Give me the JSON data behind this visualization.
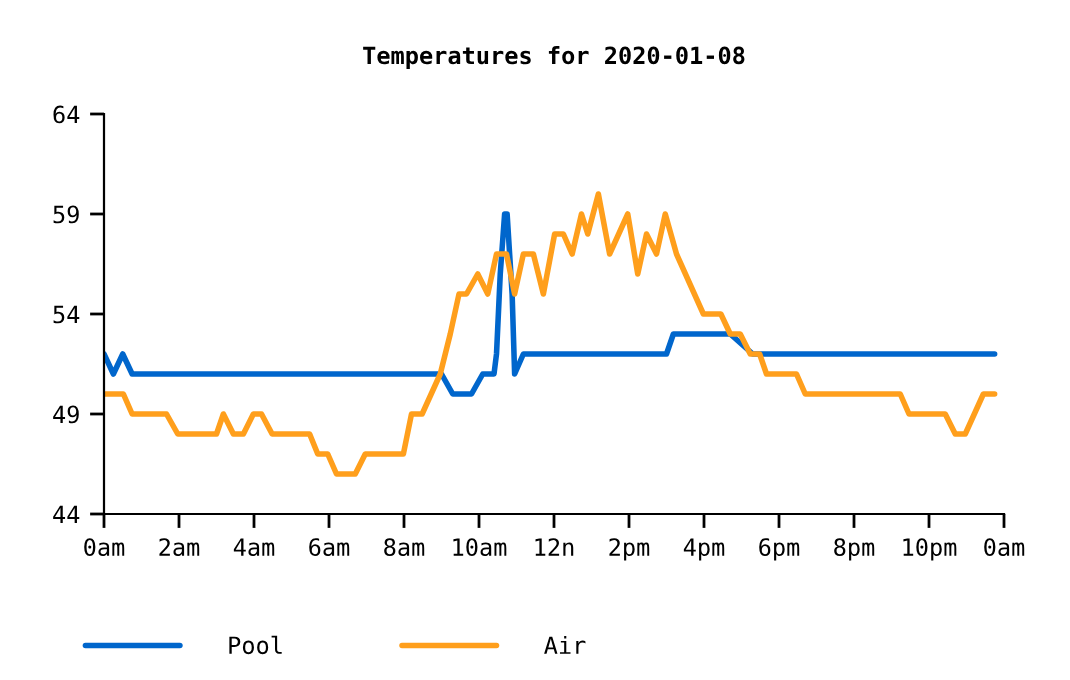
{
  "chart_data": {
    "type": "line",
    "title": "Temperatures for 2020-01-08",
    "xlim": [
      "2020-01-08T00:00",
      "2020-01-09T00:00"
    ],
    "xticks": [
      {
        "value": "2020-01-08T00:00",
        "label": "0am"
      },
      {
        "value": "2020-01-08T02:00",
        "label": "2am"
      },
      {
        "value": "2020-01-08T04:00",
        "label": "4am"
      },
      {
        "value": "2020-01-08T06:00",
        "label": "6am"
      },
      {
        "value": "2020-01-08T08:00",
        "label": "8am"
      },
      {
        "value": "2020-01-08T10:00",
        "label": "10am"
      },
      {
        "value": "2020-01-08T12:00",
        "label": "12n"
      },
      {
        "value": "2020-01-08T14:00",
        "label": "2pm"
      },
      {
        "value": "2020-01-08T16:00",
        "label": "4pm"
      },
      {
        "value": "2020-01-08T18:00",
        "label": "6pm"
      },
      {
        "value": "2020-01-08T20:00",
        "label": "8pm"
      },
      {
        "value": "2020-01-08T22:00",
        "label": "10pm"
      },
      {
        "value": "2020-01-09T00:00",
        "label": "0am"
      }
    ],
    "ylim": [
      44,
      64
    ],
    "yticks": [
      44,
      49,
      54,
      59,
      64
    ],
    "grid": false,
    "legend": "bottom left",
    "marker": "none",
    "line_style": "solid",
    "series": [
      {
        "name": "Pool",
        "color": "#0066cc",
        "x": [
          "2020-01-08T00:00",
          "2020-01-08T00:15",
          "2020-01-08T00:30",
          "2020-01-08T00:45",
          "2020-01-08T09:00",
          "2020-01-08T09:18",
          "2020-01-08T09:48",
          "2020-01-08T10:06",
          "2020-01-08T10:24",
          "2020-01-08T10:28",
          "2020-01-08T10:34",
          "2020-01-08T10:41",
          "2020-01-08T10:45",
          "2020-01-08T10:53",
          "2020-01-08T10:57",
          "2020-01-08T11:11",
          "2020-01-08T15:00",
          "2020-01-08T15:11",
          "2020-01-08T16:42",
          "2020-01-08T17:18",
          "2020-01-08T23:45"
        ],
        "values": [
          52,
          51,
          52,
          51,
          51,
          50,
          50,
          51,
          51,
          52,
          56,
          59,
          59,
          55,
          51,
          52,
          52,
          53,
          53,
          52,
          52
        ]
      },
      {
        "name": "Air",
        "color": "#ff9f1c",
        "x": [
          "2020-01-08T00:00",
          "2020-01-08T00:31",
          "2020-01-08T00:45",
          "2020-01-08T01:40",
          "2020-01-08T01:58",
          "2020-01-08T03:00",
          "2020-01-08T03:11",
          "2020-01-08T03:27",
          "2020-01-08T03:43",
          "2020-01-08T03:59",
          "2020-01-08T04:12",
          "2020-01-08T04:29",
          "2020-01-08T05:29",
          "2020-01-08T05:42",
          "2020-01-08T05:58",
          "2020-01-08T06:12",
          "2020-01-08T06:42",
          "2020-01-08T06:58",
          "2020-01-08T07:59",
          "2020-01-08T08:12",
          "2020-01-08T08:29",
          "2020-01-08T08:58",
          "2020-01-08T09:14",
          "2020-01-08T09:28",
          "2020-01-08T09:40",
          "2020-01-08T09:58",
          "2020-01-08T10:14",
          "2020-01-08T10:28",
          "2020-01-08T10:44",
          "2020-01-08T10:57",
          "2020-01-08T11:11",
          "2020-01-08T11:27",
          "2020-01-08T11:43",
          "2020-01-08T12:01",
          "2020-01-08T12:15",
          "2020-01-08T12:29",
          "2020-01-08T12:44",
          "2020-01-08T12:54",
          "2020-01-08T13:11",
          "2020-01-08T13:29",
          "2020-01-08T13:58",
          "2020-01-08T14:14",
          "2020-01-08T14:28",
          "2020-01-08T14:44",
          "2020-01-08T14:58",
          "2020-01-08T15:16",
          "2020-01-08T15:59",
          "2020-01-08T16:27",
          "2020-01-08T16:42",
          "2020-01-08T16:58",
          "2020-01-08T17:14",
          "2020-01-08T17:29",
          "2020-01-08T17:40",
          "2020-01-08T18:28",
          "2020-01-08T18:42",
          "2020-01-08T21:14",
          "2020-01-08T21:28",
          "2020-01-08T22:26",
          "2020-01-08T22:42",
          "2020-01-08T22:58",
          "2020-01-08T23:27",
          "2020-01-08T23:45"
        ],
        "values": [
          50,
          50,
          49,
          49,
          48,
          48,
          49,
          48,
          48,
          49,
          49,
          48,
          48,
          47,
          47,
          46,
          46,
          47,
          47,
          49,
          49,
          51,
          53,
          55,
          55,
          56,
          55,
          57,
          57,
          55,
          57,
          57,
          55,
          58,
          58,
          57,
          59,
          58,
          60,
          57,
          59,
          56,
          58,
          57,
          59,
          57,
          54,
          54,
          53,
          53,
          52,
          52,
          51,
          51,
          50,
          50,
          49,
          49,
          48,
          48,
          50,
          50
        ]
      }
    ]
  }
}
